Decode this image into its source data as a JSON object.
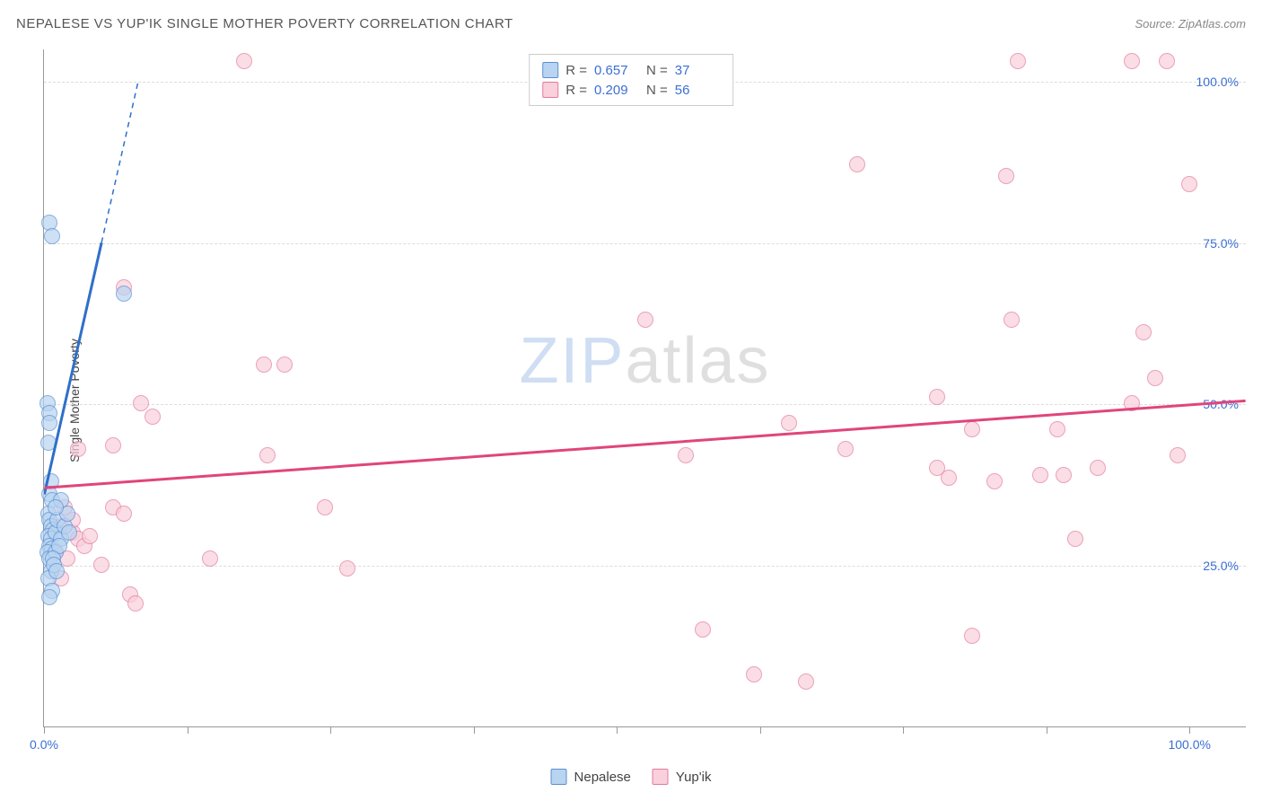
{
  "title": "NEPALESE VS YUP'IK SINGLE MOTHER POVERTY CORRELATION CHART",
  "source_label": "Source: ",
  "source_value": "ZipAtlas.com",
  "y_axis_title": "Single Mother Poverty",
  "watermark_zip": "ZIP",
  "watermark_atlas": "atlas",
  "chart": {
    "type": "scatter",
    "xlim": [
      0,
      105
    ],
    "ylim": [
      0,
      105
    ],
    "background_color": "#ffffff",
    "grid_color": "#dddddd",
    "grid_dash": true,
    "axis_color": "#999999",
    "tick_label_color": "#3b6fd4",
    "tick_label_fontsize": 14,
    "y_gridlines": [
      25,
      50,
      75,
      100
    ],
    "y_tick_labels": [
      "25.0%",
      "50.0%",
      "75.0%",
      "100.0%"
    ],
    "x_ticks": [
      0,
      12.5,
      25,
      37.5,
      50,
      62.5,
      75,
      87.5,
      100
    ],
    "x_tick_labels": {
      "0": "0.0%",
      "100": "100.0%"
    },
    "marker_radius": 9,
    "marker_border_width": 1.5,
    "series": [
      {
        "name": "Nepalese",
        "fill": "#b8d4f0",
        "stroke": "#5a8fd4",
        "fill_opacity": 0.7,
        "r_value": "0.657",
        "n_value": "37",
        "trend": {
          "x1": 0,
          "y1": 36,
          "x2": 8.2,
          "y2": 100,
          "solid_end_x": 5,
          "color": "#2f6fc9",
          "width": 3
        },
        "points": [
          [
            0.5,
            78
          ],
          [
            0.7,
            76
          ],
          [
            0.3,
            50
          ],
          [
            0.5,
            48.5
          ],
          [
            0.5,
            47
          ],
          [
            0.4,
            44
          ],
          [
            7,
            67
          ],
          [
            0.6,
            38
          ],
          [
            0.5,
            36
          ],
          [
            0.7,
            35
          ],
          [
            0.4,
            33
          ],
          [
            0.5,
            32
          ],
          [
            0.6,
            31
          ],
          [
            0.8,
            30.5
          ],
          [
            0.4,
            29.5
          ],
          [
            0.6,
            29
          ],
          [
            0.5,
            28
          ],
          [
            0.7,
            27.5
          ],
          [
            0.3,
            27
          ],
          [
            0.5,
            26
          ],
          [
            0.6,
            24
          ],
          [
            0.4,
            23
          ],
          [
            0.7,
            21
          ],
          [
            0.5,
            20
          ],
          [
            1.0,
            30
          ],
          [
            1.2,
            32
          ],
          [
            1.5,
            29
          ],
          [
            1.0,
            27
          ],
          [
            1.3,
            28
          ],
          [
            1.8,
            31
          ],
          [
            2.0,
            33
          ],
          [
            2.2,
            30
          ],
          [
            1.5,
            35
          ],
          [
            1.0,
            34
          ],
          [
            0.8,
            26
          ],
          [
            0.9,
            25
          ],
          [
            1.1,
            24
          ]
        ]
      },
      {
        "name": "Yup'ik",
        "fill": "#f9d0db",
        "stroke": "#e379a0",
        "fill_opacity": 0.7,
        "r_value": "0.209",
        "n_value": "56",
        "trend": {
          "x1": 0,
          "y1": 37,
          "x2": 105,
          "y2": 50.5,
          "color": "#e0457c",
          "width": 3
        },
        "points": [
          [
            17.5,
            103
          ],
          [
            85,
            103
          ],
          [
            95,
            103
          ],
          [
            98,
            103
          ],
          [
            7,
            68
          ],
          [
            71,
            87
          ],
          [
            84,
            85.3
          ],
          [
            100,
            84
          ],
          [
            19.2,
            56
          ],
          [
            21,
            56
          ],
          [
            52.5,
            63
          ],
          [
            84.5,
            63
          ],
          [
            96,
            61
          ],
          [
            8.5,
            50
          ],
          [
            9.5,
            48
          ],
          [
            19.5,
            42
          ],
          [
            78,
            51
          ],
          [
            81,
            46
          ],
          [
            88.5,
            46
          ],
          [
            95,
            50
          ],
          [
            97,
            54
          ],
          [
            3,
            43
          ],
          [
            6,
            43.5
          ],
          [
            56,
            42
          ],
          [
            65,
            47
          ],
          [
            70,
            43
          ],
          [
            79,
            38.5
          ],
          [
            78,
            40
          ],
          [
            83,
            38
          ],
          [
            87,
            39
          ],
          [
            89,
            39
          ],
          [
            92,
            40
          ],
          [
            99,
            42
          ],
          [
            6,
            34
          ],
          [
            7,
            33
          ],
          [
            24.5,
            34
          ],
          [
            1.5,
            31
          ],
          [
            2.5,
            30
          ],
          [
            3,
            29
          ],
          [
            3.5,
            28
          ],
          [
            4,
            29.5
          ],
          [
            1,
            27
          ],
          [
            2,
            26
          ],
          [
            5,
            25
          ],
          [
            14.5,
            26
          ],
          [
            26.5,
            24.5
          ],
          [
            90,
            29
          ],
          [
            7.5,
            20.5
          ],
          [
            8,
            19
          ],
          [
            1.5,
            23
          ],
          [
            57.5,
            15
          ],
          [
            62,
            8
          ],
          [
            66.5,
            7
          ],
          [
            81,
            14
          ],
          [
            1.8,
            34
          ],
          [
            2.5,
            32
          ]
        ]
      }
    ]
  },
  "legend_top": {
    "r_label": "R =",
    "n_label": "N ="
  },
  "legend_bottom": {
    "items": [
      "Nepalese",
      "Yup'ik"
    ]
  }
}
